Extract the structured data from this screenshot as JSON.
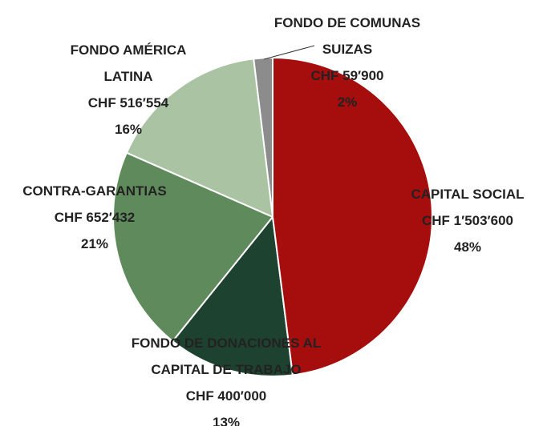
{
  "chart_data": {
    "type": "pie",
    "categories": [
      "CAPITAL SOCIAL",
      "FONDO DE DONACIONES AL CAPITAL DE TRABAJO",
      "CONTRA-GARANTIAS",
      "FONDO AMÉRICA LATINA",
      "FONDO DE COMUNAS SUIZAS"
    ],
    "values": [
      1503600,
      400000,
      652432,
      516554,
      59900
    ],
    "value_labels": [
      "CHF 1′503′600",
      "CHF 400′000",
      "CHF 652′432",
      "CHF 516′554",
      "CHF 59′900"
    ],
    "percentages": [
      {
        "value": 48,
        "label": "48%"
      },
      {
        "value": 13,
        "label": "13%"
      },
      {
        "value": 21,
        "label": "21%"
      },
      {
        "value": 16,
        "label": "16%"
      },
      {
        "value": 2,
        "label": "2%"
      }
    ],
    "colors": [
      "#a60d0d",
      "#1e4230",
      "#5f8a5c",
      "#a9c3a3",
      "#8c8c8c"
    ]
  }
}
